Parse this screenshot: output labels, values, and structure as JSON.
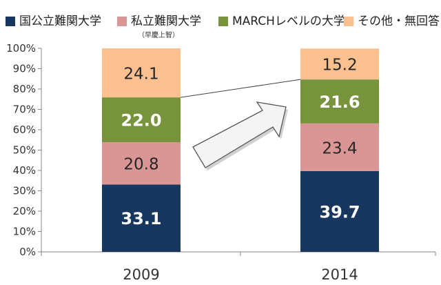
{
  "legend": [
    {
      "label": "国公立難関大学",
      "note": "",
      "color": "#17375e"
    },
    {
      "label": "私立難関大学",
      "note": "（早慶上智）",
      "color": "#d99694"
    },
    {
      "label": "MARCHレベルの大学",
      "note": "",
      "color": "#77933c"
    },
    {
      "label": "その他・無回答",
      "note": "",
      "color": "#fac090"
    }
  ],
  "chart_data": {
    "type": "bar",
    "stacked": true,
    "categories": [
      "2009",
      "2014"
    ],
    "series": [
      {
        "name": "国公立難関大学",
        "values": [
          33.1,
          39.7
        ],
        "color": "#17375e",
        "label_color": "#ffffff",
        "label_bold": true
      },
      {
        "name": "私立難関大学",
        "values": [
          20.8,
          23.4
        ],
        "color": "#d99694",
        "label_color": "#262626",
        "label_bold": false
      },
      {
        "name": "MARCHレベルの大学",
        "values": [
          22.0,
          21.6
        ],
        "color": "#77933c",
        "label_color": "#ffffff",
        "label_bold": true
      },
      {
        "name": "その他・無回答",
        "values": [
          24.1,
          15.2
        ],
        "color": "#fac090",
        "label_color": "#262626",
        "label_bold": false
      }
    ],
    "data_labels": [
      [
        "33.1",
        "20.8",
        "22.0",
        "24.1"
      ],
      [
        "39.7",
        "23.4",
        "21.6",
        "15.2"
      ]
    ],
    "yticks": [
      "0%",
      "10%",
      "20%",
      "30%",
      "40%",
      "50%",
      "60%",
      "70%",
      "80%",
      "90%",
      "100%"
    ],
    "ylim": [
      0,
      100
    ],
    "grid": false,
    "annotations": [
      "increase-arrow",
      "connector-line-march-top"
    ]
  }
}
